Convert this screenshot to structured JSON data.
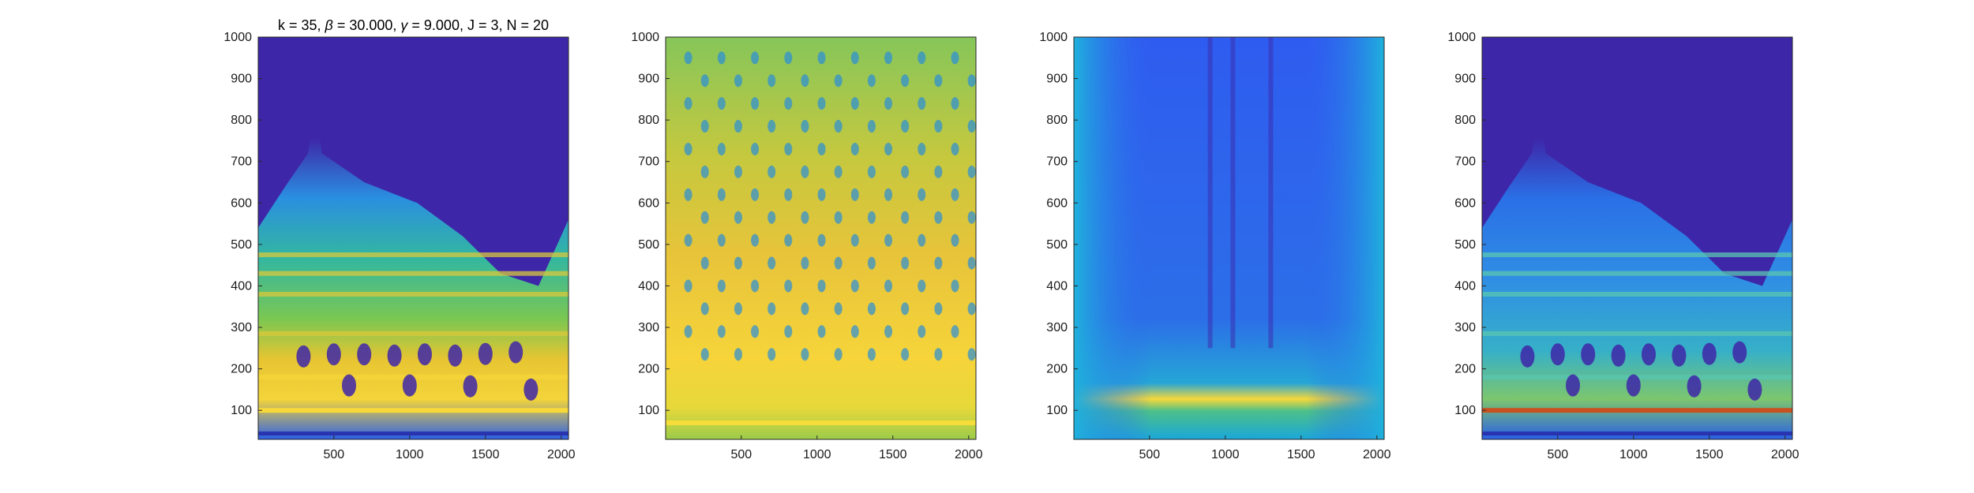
{
  "chart_data": [
    {
      "type": "heatmap",
      "title": "k = 35, β = 30.000, γ = 9.000, J = 3, N = 20",
      "title_parts": [
        "k = 35, ",
        "β",
        " = 30.000, ",
        "γ",
        " = 9.000, J = 3, N = 20"
      ],
      "xlabel": "",
      "ylabel": "",
      "xlim": [
        1,
        2048
      ],
      "ylim": [
        30,
        1000
      ],
      "xticks": [
        500,
        1000,
        1500,
        2000
      ],
      "yticks": [
        100,
        200,
        300,
        400,
        500,
        600,
        700,
        800,
        900,
        1000
      ],
      "colormap": "parula",
      "background_color": "#3e26a8",
      "description_kind": "time-frequency energy map"
    },
    {
      "type": "heatmap",
      "title": "",
      "xlabel": "",
      "ylabel": "",
      "xlim": [
        1,
        2048
      ],
      "ylim": [
        30,
        1000
      ],
      "xticks": [
        500,
        1000,
        1500,
        2000
      ],
      "yticks": [
        100,
        200,
        300,
        400,
        500,
        600,
        700,
        800,
        900,
        1000
      ],
      "colormap": "parula"
    },
    {
      "type": "heatmap",
      "title": "",
      "xlabel": "",
      "ylabel": "",
      "xlim": [
        1,
        2048
      ],
      "ylim": [
        30,
        1000
      ],
      "xticks": [
        500,
        1000,
        1500,
        2000
      ],
      "yticks": [
        100,
        200,
        300,
        400,
        500,
        600,
        700,
        800,
        900,
        1000
      ],
      "colormap": "parula"
    },
    {
      "type": "heatmap",
      "title": "",
      "xlabel": "",
      "ylabel": "",
      "xlim": [
        1,
        2048
      ],
      "ylim": [
        30,
        1000
      ],
      "xticks": [
        500,
        1000,
        1500,
        2000
      ],
      "yticks": [
        100,
        200,
        300,
        400,
        500,
        600,
        700,
        800,
        900,
        1000
      ],
      "colormap": "parula",
      "highlight_line_y": 95,
      "highlight_line_color": "#d9531e"
    }
  ],
  "colors": {
    "parula_low": "#3e26a8",
    "parula_blue": "#2f68f5",
    "parula_cyan": "#19b6d9",
    "parula_green": "#58c566",
    "parula_yellow": "#f9d93a",
    "accent_red": "#d9531e"
  }
}
